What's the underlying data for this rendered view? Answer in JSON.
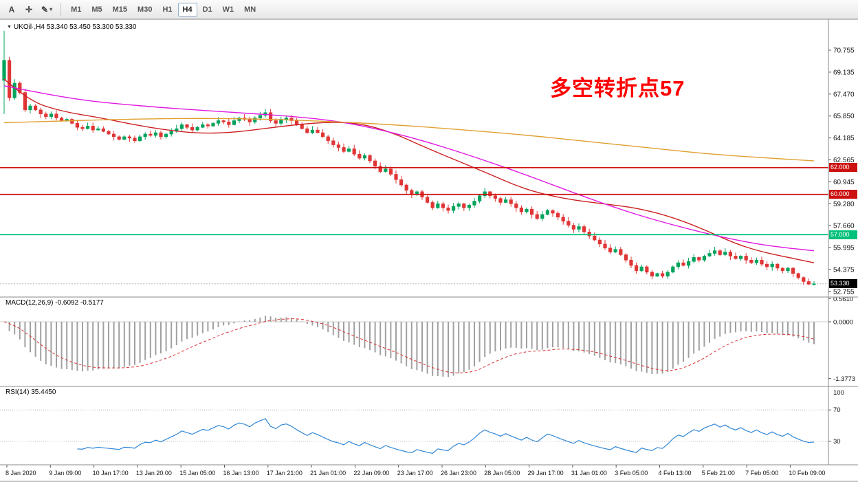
{
  "toolbar": {
    "tools": [
      {
        "label": "A"
      },
      {
        "label": "✛"
      },
      {
        "label": "✎"
      }
    ],
    "draw_caret": "▾",
    "timeframes": [
      "M1",
      "M5",
      "M15",
      "M30",
      "H1",
      "H4",
      "D1",
      "W1",
      "MN"
    ],
    "active_timeframe": "H4"
  },
  "price_pane": {
    "collapse_icon": "▼",
    "symbol_label": "UKOil·,H4",
    "ohlc": "53.340 53.450 53.300 53.330",
    "annotation": {
      "text": "多空转折点57",
      "color": "#ff0000"
    },
    "axis_labels": [
      "70.755",
      "69.135",
      "67.470",
      "65.850",
      "64.185",
      "62.565",
      "60.945",
      "59.280",
      "57.660",
      "55.995",
      "54.375",
      "52.755"
    ],
    "levels": [
      {
        "label": "62.000",
        "price": 62.0,
        "color": "#cc1111"
      },
      {
        "label": "60.000",
        "price": 60.0,
        "color": "#cc1111"
      },
      {
        "label": "57.000",
        "price": 57.0,
        "color": "#00c07a"
      }
    ],
    "bid": {
      "label": "53.330",
      "price": 53.33,
      "tag_bg": "#000000"
    }
  },
  "macd_pane": {
    "label": "MACD(12,26,9)",
    "values": "-0.6092 -0.5177",
    "axis_labels": [
      {
        "text": "0.5610",
        "value": 0.561
      },
      {
        "text": "0.0000",
        "value": 0
      },
      {
        "text": "-1.3773",
        "value": -1.3773
      }
    ]
  },
  "rsi_pane": {
    "label": "RSI(14)",
    "value": "35.4450",
    "axis": [
      {
        "text": "100",
        "value": 100
      },
      {
        "text": "70",
        "value": 70
      },
      {
        "text": "30",
        "value": 30
      }
    ],
    "levels": [
      70,
      30
    ]
  },
  "time_axis": {
    "labels": [
      "8 Jan 2020",
      "9 Jan 09:00",
      "10 Jan 17:00",
      "13 Jan 20:00",
      "15 Jan 05:00",
      "16 Jan 13:00",
      "17 Jan 21:00",
      "21 Jan 01:00",
      "22 Jan 09:00",
      "23 Jan 17:00",
      "26 Jan 23:00",
      "28 Jan 05:00",
      "29 Jan 17:00",
      "31 Jan 01:00",
      "3 Feb 05:00",
      "4 Feb 13:00",
      "5 Feb 21:00",
      "7 Feb 05:00",
      "10 Feb 09:00"
    ]
  },
  "chart_data": {
    "type": "candlestick",
    "symbol": "UKOil",
    "timeframe": "H4",
    "title": "UKOil H4 with MACD(12,26,9) and RSI(14)",
    "ylim": [
      52.755,
      70.755
    ],
    "open_first": 68.5,
    "closes": [
      70.0,
      67.2,
      68.3,
      67.6,
      66.3,
      66.6,
      66.3,
      66.0,
      65.8,
      66.0,
      65.7,
      65.5,
      65.6,
      65.3,
      65.0,
      64.9,
      65.1,
      64.8,
      64.9,
      64.7,
      64.5,
      64.3,
      64.1,
      64.3,
      64.2,
      64.0,
      64.3,
      64.5,
      64.4,
      64.6,
      64.3,
      64.5,
      64.7,
      64.9,
      65.2,
      65.0,
      64.8,
      65.0,
      65.2,
      65.1,
      65.3,
      65.5,
      65.4,
      65.2,
      65.5,
      65.7,
      65.6,
      65.4,
      65.7,
      65.9,
      66.1,
      65.5,
      65.3,
      65.6,
      65.7,
      65.5,
      65.2,
      64.9,
      64.6,
      64.8,
      64.6,
      64.3,
      64.0,
      63.7,
      63.5,
      63.2,
      63.4,
      63.0,
      62.7,
      62.9,
      62.5,
      62.1,
      61.7,
      61.9,
      61.5,
      61.1,
      60.7,
      60.3,
      60.0,
      60.2,
      59.8,
      59.4,
      59.0,
      59.3,
      59.0,
      58.8,
      59.1,
      59.3,
      59.0,
      59.2,
      59.5,
      59.9,
      60.2,
      59.9,
      59.7,
      59.4,
      59.6,
      59.3,
      59.0,
      58.7,
      58.9,
      58.5,
      58.2,
      58.5,
      58.8,
      58.6,
      58.3,
      58.0,
      57.7,
      57.4,
      57.6,
      57.2,
      56.9,
      56.6,
      56.3,
      56.0,
      55.7,
      55.9,
      55.5,
      55.1,
      54.7,
      54.3,
      54.6,
      54.2,
      53.9,
      54.1,
      53.9,
      54.2,
      54.6,
      54.9,
      54.7,
      55.0,
      55.3,
      55.1,
      55.4,
      55.6,
      55.8,
      55.5,
      55.7,
      55.4,
      55.2,
      55.4,
      55.1,
      54.9,
      55.1,
      54.8,
      54.6,
      54.8,
      54.5,
      54.3,
      54.5,
      54.1,
      53.8,
      53.5,
      53.3,
      53.33
    ],
    "ma_red": [
      [
        0,
        68.6
      ],
      [
        0.03,
        67.0
      ],
      [
        0.07,
        66.2
      ],
      [
        0.12,
        65.7
      ],
      [
        0.16,
        65.2
      ],
      [
        0.2,
        64.8
      ],
      [
        0.24,
        64.55
      ],
      [
        0.28,
        64.6
      ],
      [
        0.32,
        64.9
      ],
      [
        0.36,
        65.2
      ],
      [
        0.4,
        65.4
      ],
      [
        0.44,
        65.3
      ],
      [
        0.48,
        64.6
      ],
      [
        0.52,
        63.5
      ],
      [
        0.56,
        62.5
      ],
      [
        0.6,
        61.5
      ],
      [
        0.63,
        60.7
      ],
      [
        0.66,
        60.1
      ],
      [
        0.7,
        59.6
      ],
      [
        0.74,
        59.3
      ],
      [
        0.78,
        59.0
      ],
      [
        0.82,
        58.4
      ],
      [
        0.86,
        57.5
      ],
      [
        0.9,
        56.4
      ],
      [
        0.93,
        55.8
      ],
      [
        0.96,
        55.4
      ],
      [
        1,
        54.9
      ]
    ],
    "ma_magenta": [
      [
        0,
        68.1
      ],
      [
        0.05,
        67.5
      ],
      [
        0.1,
        67.0
      ],
      [
        0.15,
        66.7
      ],
      [
        0.2,
        66.45
      ],
      [
        0.25,
        66.25
      ],
      [
        0.3,
        66.05
      ],
      [
        0.35,
        65.85
      ],
      [
        0.4,
        65.55
      ],
      [
        0.44,
        65.15
      ],
      [
        0.48,
        64.6
      ],
      [
        0.52,
        63.95
      ],
      [
        0.56,
        63.2
      ],
      [
        0.6,
        62.4
      ],
      [
        0.64,
        61.55
      ],
      [
        0.68,
        60.65
      ],
      [
        0.72,
        59.75
      ],
      [
        0.76,
        58.9
      ],
      [
        0.8,
        58.15
      ],
      [
        0.84,
        57.5
      ],
      [
        0.87,
        57.05
      ],
      [
        0.9,
        56.65
      ],
      [
        0.93,
        56.3
      ],
      [
        0.96,
        56.05
      ],
      [
        1,
        55.8
      ]
    ],
    "ma_orange": [
      [
        0,
        65.35
      ],
      [
        0.08,
        65.5
      ],
      [
        0.16,
        65.62
      ],
      [
        0.24,
        65.68
      ],
      [
        0.32,
        65.62
      ],
      [
        0.4,
        65.45
      ],
      [
        0.48,
        65.2
      ],
      [
        0.56,
        64.85
      ],
      [
        0.64,
        64.45
      ],
      [
        0.72,
        63.95
      ],
      [
        0.8,
        63.45
      ],
      [
        0.88,
        62.95
      ],
      [
        1,
        62.5
      ]
    ],
    "colors": {
      "up": "#00a35c",
      "down": "#e03535",
      "ma_red": "#cc2020",
      "ma_magenta": "#e018e0",
      "ma_orange": "#e0a030",
      "macd_hist": "#a0a0a0",
      "macd_signal": "#d83030",
      "rsi": "#2e86d5"
    }
  }
}
